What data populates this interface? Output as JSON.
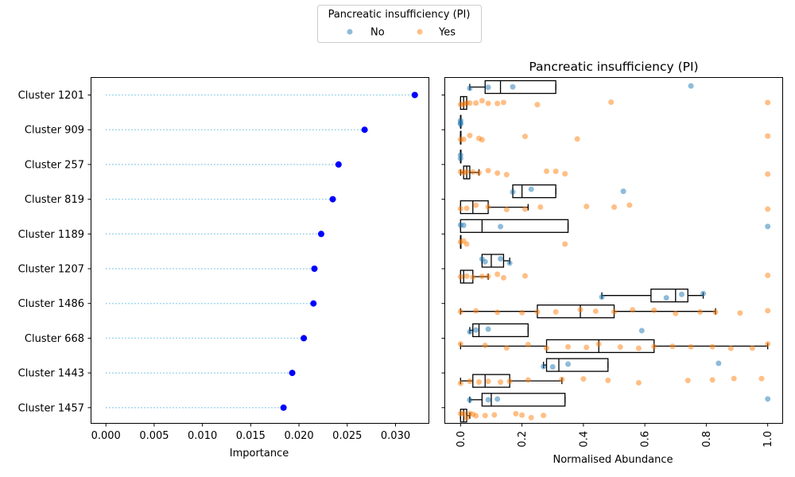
{
  "chart_data": [
    {
      "type": "scatter",
      "subtype": "lollipop",
      "title": "",
      "xlabel": "Importance",
      "ylabel": "",
      "xlim": [
        -0.0015,
        0.0335
      ],
      "xticks": [
        "0.000",
        "0.005",
        "0.010",
        "0.015",
        "0.020",
        "0.025",
        "0.030"
      ],
      "xtick_values": [
        0,
        0.005,
        0.01,
        0.015,
        0.02,
        0.025,
        0.03
      ],
      "categories": [
        "Cluster 1201",
        "Cluster 909",
        "Cluster 257",
        "Cluster 819",
        "Cluster 1189",
        "Cluster 1207",
        "Cluster 1486",
        "Cluster 668",
        "Cluster 1443",
        "Cluster 1457"
      ],
      "values": [
        0.032,
        0.0268,
        0.0241,
        0.0235,
        0.0223,
        0.0216,
        0.0215,
        0.0205,
        0.0193,
        0.0184
      ],
      "grid": false,
      "colors": {
        "marker": "#0000ff",
        "stem": "#87ceeb"
      }
    },
    {
      "type": "box",
      "title": "Pancreatic insufficiency (PI)",
      "xlabel": "Normalised Abundance",
      "ylabel": "",
      "xlim": [
        -0.05,
        1.05
      ],
      "xticks": [
        "0.0",
        "0.2",
        "0.4",
        "0.6",
        "0.8",
        "1.0"
      ],
      "xtick_values": [
        0,
        0.2,
        0.4,
        0.6,
        0.8,
        1.0
      ],
      "categories": [
        "Cluster 1201",
        "Cluster 909",
        "Cluster 257",
        "Cluster 819",
        "Cluster 1189",
        "Cluster 1207",
        "Cluster 1486",
        "Cluster 668",
        "Cluster 1443",
        "Cluster 1457"
      ],
      "legend": {
        "title": "Pancreatic insufficiency (PI)",
        "position": "top-center",
        "entries": [
          "No",
          "Yes"
        ]
      },
      "colors": {
        "No": "#1f77b4",
        "Yes": "#ff7f0e"
      },
      "series": [
        {
          "name": "No",
          "boxes": [
            {
              "whislo": 0.03,
              "q1": 0.08,
              "med": 0.13,
              "q3": 0.31,
              "whishi": 0.31,
              "points": [
                0.03,
                0.09,
                0.17,
                0.75
              ]
            },
            {
              "whislo": 0.0,
              "q1": 0.0,
              "med": 0.0,
              "q3": 0.0,
              "whishi": 0.0,
              "points": [
                0.0,
                0.0,
                0.0
              ]
            },
            {
              "whislo": 0.0,
              "q1": 0.0,
              "med": 0.0,
              "q3": 0.0,
              "whishi": 0.0,
              "points": [
                0.0,
                0.0
              ]
            },
            {
              "whislo": 0.17,
              "q1": 0.17,
              "med": 0.2,
              "q3": 0.31,
              "whishi": 0.31,
              "points": [
                0.17,
                0.23,
                0.53
              ]
            },
            {
              "whislo": 0.0,
              "q1": 0.0,
              "med": 0.07,
              "q3": 0.35,
              "whishi": 0.35,
              "points": [
                0.0,
                0.01,
                0.13,
                1.0
              ]
            },
            {
              "whislo": 0.07,
              "q1": 0.07,
              "med": 0.1,
              "q3": 0.14,
              "whishi": 0.16,
              "points": [
                0.07,
                0.08,
                0.13,
                0.16
              ]
            },
            {
              "whislo": 0.46,
              "q1": 0.62,
              "med": 0.7,
              "q3": 0.74,
              "whishi": 0.79,
              "points": [
                0.46,
                0.67,
                0.72,
                0.79
              ]
            },
            {
              "whislo": 0.03,
              "q1": 0.04,
              "med": 0.06,
              "q3": 0.22,
              "whishi": 0.22,
              "points": [
                0.03,
                0.05,
                0.09,
                0.59
              ]
            },
            {
              "whislo": 0.27,
              "q1": 0.28,
              "med": 0.32,
              "q3": 0.48,
              "whishi": 0.48,
              "points": [
                0.27,
                0.3,
                0.35,
                0.84
              ]
            },
            {
              "whislo": 0.03,
              "q1": 0.07,
              "med": 0.1,
              "q3": 0.34,
              "whishi": 0.34,
              "points": [
                0.03,
                0.09,
                0.12,
                1.0
              ]
            }
          ]
        },
        {
          "name": "Yes",
          "boxes": [
            {
              "whislo": 0.0,
              "q1": 0.0,
              "med": 0.01,
              "q3": 0.02,
              "whishi": 0.02,
              "points": [
                0.0,
                0.01,
                0.02,
                0.03,
                0.05,
                0.07,
                0.09,
                0.12,
                0.14,
                0.25,
                0.49,
                1.0
              ]
            },
            {
              "whislo": 0.0,
              "q1": 0.0,
              "med": 0.0,
              "q3": 0.0,
              "whishi": 0.0,
              "points": [
                0.0,
                0.01,
                0.03,
                0.06,
                0.07,
                0.21,
                0.38,
                1.0
              ]
            },
            {
              "whislo": 0.0,
              "q1": 0.01,
              "med": 0.02,
              "q3": 0.03,
              "whishi": 0.06,
              "points": [
                0.0,
                0.01,
                0.02,
                0.04,
                0.06,
                0.09,
                0.12,
                0.15,
                0.28,
                0.31,
                0.34,
                1.0
              ]
            },
            {
              "whislo": 0.0,
              "q1": 0.0,
              "med": 0.04,
              "q3": 0.09,
              "whishi": 0.22,
              "points": [
                0.0,
                0.02,
                0.05,
                0.09,
                0.15,
                0.21,
                0.26,
                0.41,
                0.5,
                0.55,
                1.0
              ]
            },
            {
              "whislo": 0.0,
              "q1": 0.0,
              "med": 0.0,
              "q3": 0.0,
              "whishi": 0.0,
              "points": [
                0.0,
                0.01,
                0.02,
                0.34
              ]
            },
            {
              "whislo": 0.0,
              "q1": 0.0,
              "med": 0.01,
              "q3": 0.04,
              "whishi": 0.09,
              "points": [
                0.0,
                0.02,
                0.04,
                0.07,
                0.09,
                0.12,
                0.14,
                0.21,
                1.0
              ]
            },
            {
              "whislo": 0.0,
              "q1": 0.25,
              "med": 0.39,
              "q3": 0.5,
              "whishi": 0.83,
              "points": [
                0.0,
                0.05,
                0.12,
                0.2,
                0.25,
                0.31,
                0.39,
                0.44,
                0.5,
                0.56,
                0.63,
                0.7,
                0.78,
                0.83,
                0.91,
                1.0
              ]
            },
            {
              "whislo": 0.0,
              "q1": 0.28,
              "med": 0.45,
              "q3": 0.63,
              "whishi": 1.0,
              "points": [
                0.0,
                0.08,
                0.15,
                0.22,
                0.28,
                0.35,
                0.41,
                0.45,
                0.52,
                0.58,
                0.63,
                0.69,
                0.75,
                0.82,
                0.88,
                0.95,
                1.0
              ]
            },
            {
              "whislo": 0.0,
              "q1": 0.04,
              "med": 0.08,
              "q3": 0.16,
              "whishi": 0.33,
              "points": [
                0.0,
                0.03,
                0.06,
                0.09,
                0.13,
                0.16,
                0.22,
                0.33,
                0.4,
                0.48,
                0.58,
                0.74,
                0.82,
                0.89,
                0.98
              ]
            },
            {
              "whislo": 0.0,
              "q1": 0.0,
              "med": 0.01,
              "q3": 0.02,
              "whishi": 0.03,
              "points": [
                0.0,
                0.01,
                0.02,
                0.03,
                0.04,
                0.05,
                0.08,
                0.11,
                0.18,
                0.2,
                0.23,
                0.27
              ]
            }
          ]
        }
      ]
    }
  ]
}
